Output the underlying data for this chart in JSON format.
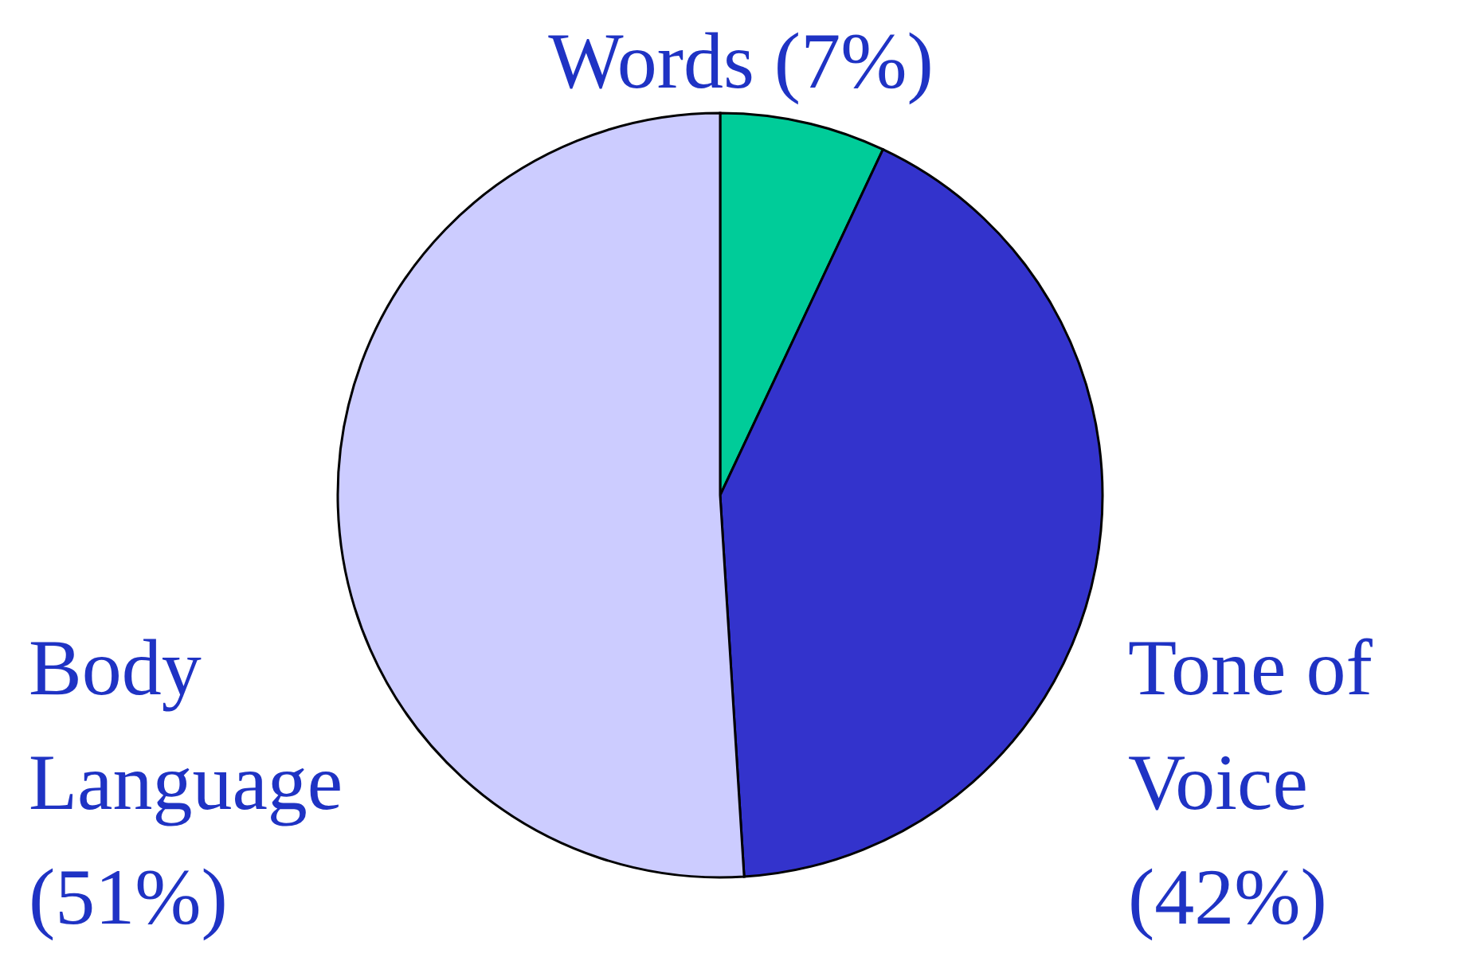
{
  "chart_data": {
    "type": "pie",
    "categories": [
      "Words",
      "Tone of Voice",
      "Body Language"
    ],
    "values": [
      7,
      42,
      51
    ],
    "colors": [
      "#00cc99",
      "#3333cc",
      "#ccccff"
    ],
    "value_labels": [
      "(7%)",
      "(42%)",
      "(51%)"
    ]
  }
}
